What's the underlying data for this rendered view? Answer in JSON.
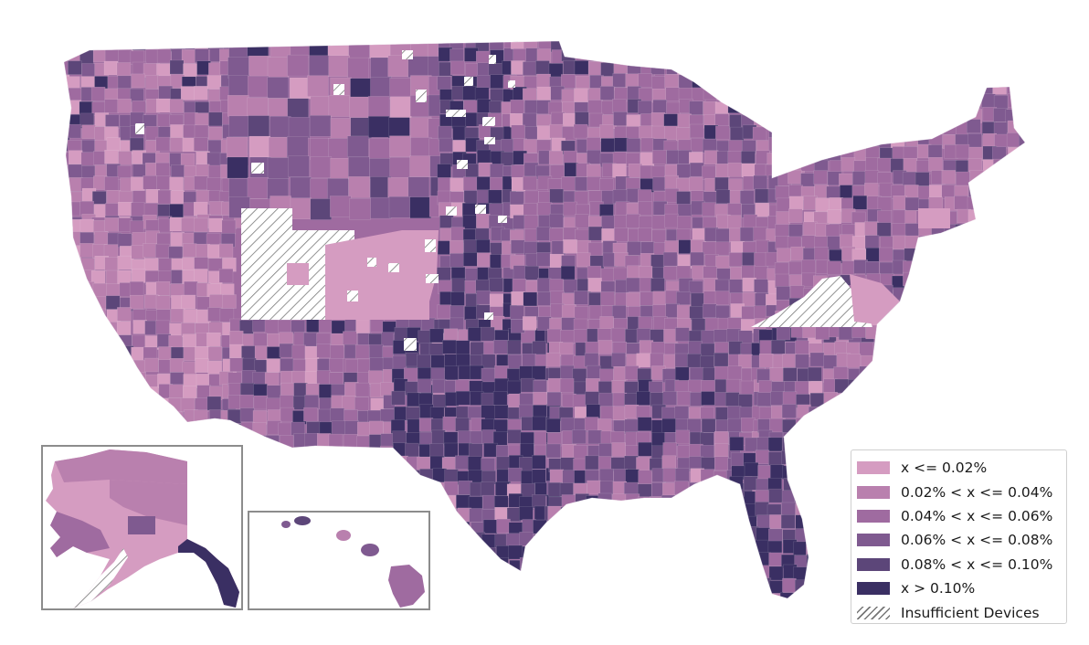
{
  "map": {
    "colors": {
      "bin0": "#d59cc1",
      "bin1": "#b980ae",
      "bin2": "#9f6ba0",
      "bin3": "#7f5a90",
      "bin4": "#5c4679",
      "bin5": "#3a2f63",
      "hatch": "#777777",
      "frame": "#8c8c8c"
    },
    "insets": [
      "alaska",
      "hawaii"
    ]
  },
  "legend": {
    "items": [
      {
        "label": "x <= 0.02%",
        "color": "#d59cc1",
        "icon": "swatch"
      },
      {
        "label": "0.02% < x <= 0.04%",
        "color": "#b980ae",
        "icon": "swatch"
      },
      {
        "label": "0.04% < x <= 0.06%",
        "color": "#9f6ba0",
        "icon": "swatch"
      },
      {
        "label": "0.06% < x <= 0.08%",
        "color": "#7f5a90",
        "icon": "swatch"
      },
      {
        "label": "0.08% < x <= 0.10%",
        "color": "#5c4679",
        "icon": "swatch"
      },
      {
        "label": "x > 0.10%",
        "color": "#3a2f63",
        "icon": "swatch"
      },
      {
        "label": "Insufficient Devices",
        "color": "#777777",
        "icon": "hatch"
      }
    ]
  }
}
